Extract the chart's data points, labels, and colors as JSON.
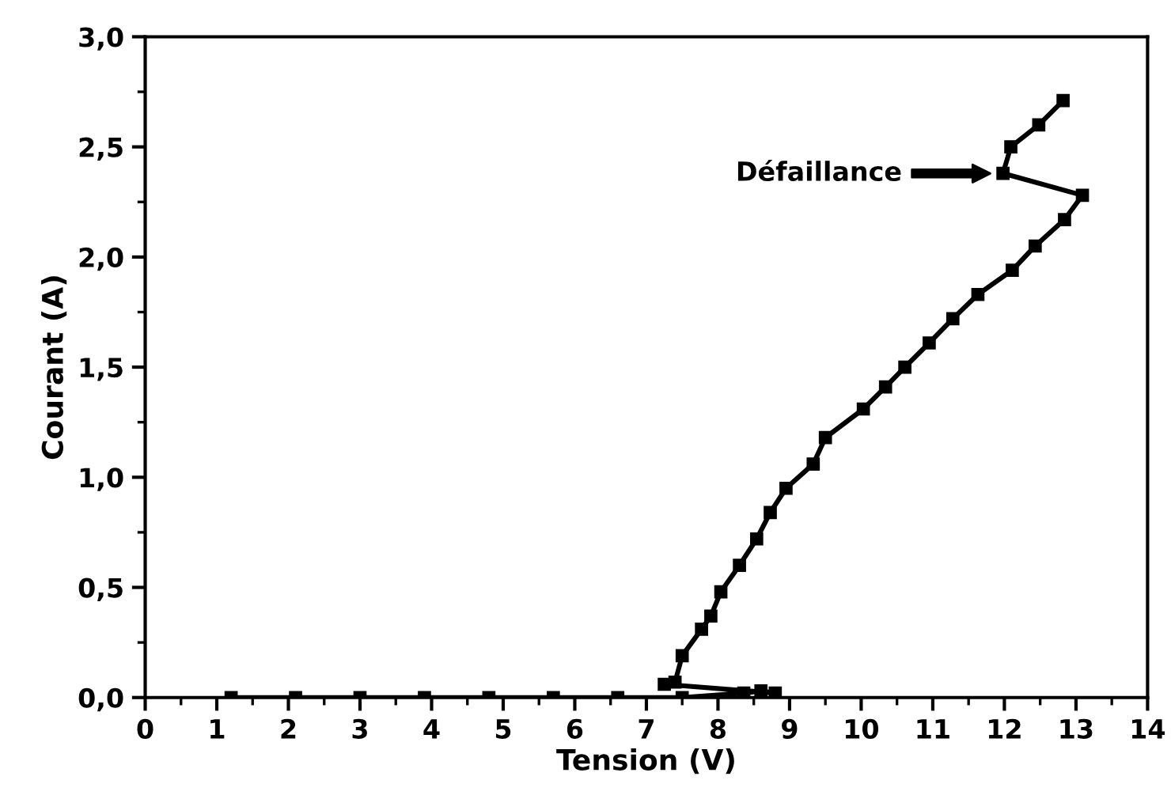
{
  "chart_data": {
    "type": "line",
    "xlabel": "Tension (V)",
    "ylabel": "Courant (A)",
    "series": [
      {
        "color": "#000000",
        "x": [
          1.2,
          2.1,
          3.0,
          3.9,
          4.8,
          5.7,
          6.6,
          7.5,
          8.36,
          8.6,
          8.8,
          7.25,
          7.4,
          7.5,
          7.77,
          7.9,
          8.04,
          8.3,
          8.54,
          8.73,
          8.95,
          9.33,
          9.5,
          10.03,
          10.34,
          10.61,
          10.95,
          11.28,
          11.63,
          12.11,
          12.43,
          12.84,
          13.09,
          11.98,
          12.09,
          12.48,
          12.82
        ],
        "values": [
          0,
          0,
          0,
          0,
          0,
          0,
          0,
          0,
          0.02,
          0.03,
          0.02,
          0.06,
          0.07,
          0.19,
          0.31,
          0.37,
          0.48,
          0.6,
          0.72,
          0.84,
          0.95,
          1.06,
          1.18,
          1.31,
          1.41,
          1.5,
          1.61,
          1.72,
          1.83,
          1.94,
          2.05,
          2.17,
          2.28,
          2.38,
          2.5,
          2.6,
          2.71
        ]
      }
    ],
    "xlim": [
      0,
      14
    ],
    "xticks": [
      0,
      {
        "value": 0.5,
        "label": null
      },
      1,
      {
        "value": 1.5,
        "label": null
      },
      2,
      {
        "value": 2.5,
        "label": null
      },
      3,
      {
        "value": 3.5,
        "label": null
      },
      4,
      {
        "value": 4.5,
        "label": null
      },
      5,
      {
        "value": 5.5,
        "label": null
      },
      6,
      {
        "value": 6.5,
        "label": null
      },
      7,
      {
        "value": 7.5,
        "label": null
      },
      8,
      {
        "value": 8.5,
        "label": null
      },
      9,
      {
        "value": 9.5,
        "label": null
      },
      10,
      {
        "value": 10.5,
        "label": null
      },
      11,
      {
        "value": 11.5,
        "label": null
      },
      12,
      {
        "value": 12.5,
        "label": null
      },
      13,
      {
        "value": 13.5,
        "label": null
      },
      14
    ],
    "ylim": [
      0,
      3.0
    ],
    "yticks": [
      {
        "value": 0,
        "label": "0,0"
      },
      {
        "value": 0.25,
        "label": null
      },
      {
        "value": 0.5,
        "label": "0,5"
      },
      {
        "value": 0.75,
        "label": null
      },
      {
        "value": 1.0,
        "label": "1,0"
      },
      {
        "value": 1.25,
        "label": null
      },
      {
        "value": 1.5,
        "label": "1,5"
      },
      {
        "value": 1.75,
        "label": null
      },
      {
        "value": 2.0,
        "label": "2,0"
      },
      {
        "value": 2.25,
        "label": null
      },
      {
        "value": 2.5,
        "label": "2,5"
      },
      {
        "value": 2.75,
        "label": null
      },
      {
        "value": 3.0,
        "label": "3,0"
      }
    ],
    "annotations": [
      "Défaillance"
    ],
    "marker": "square",
    "line_style": "solid",
    "grid": false,
    "legend": false
  }
}
